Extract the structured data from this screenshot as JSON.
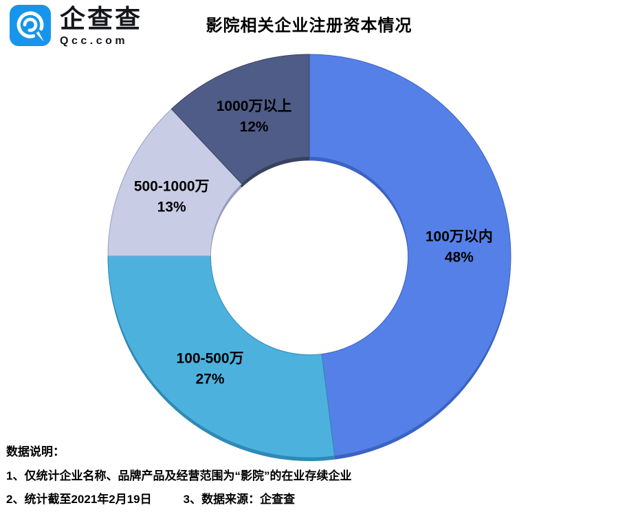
{
  "header": {
    "logo": {
      "brand_cn": "企查查",
      "brand_domain": "Qcc.com",
      "icon_color": "#1795EC",
      "icon_glyph_color": "#ffffff"
    },
    "title": "影院相关企业注册资本情况"
  },
  "chart_data": {
    "type": "pie",
    "subtype": "donut",
    "title": "影院相关企业注册资本情况",
    "unit": "%",
    "start_angle_deg": 0,
    "direction": "clockwise",
    "inner_radius_ratio": 0.49,
    "legend_position": "none",
    "labels_on_slices": true,
    "slices": [
      {
        "label": "100万以内",
        "value": 48,
        "color": "#5580E8",
        "edge_color": "#3C63C2"
      },
      {
        "label": "100-500万",
        "value": 27,
        "color": "#4DB1DE",
        "edge_color": "#2F89B5"
      },
      {
        "label": "500-1000万",
        "value": 13,
        "color": "#C9CCE5",
        "edge_color": "#989CC0"
      },
      {
        "label": "1000万以上",
        "value": 12,
        "color": "#4F5C87",
        "edge_color": "#38425F"
      }
    ]
  },
  "notes": {
    "heading": "数据说明：",
    "line1": "1、仅统计企业名称、品牌产品及经营范围为“影院”的在业存续企业",
    "line2_left": "2、统计截至2021年2月19日",
    "line2_right": "3、数据来源：企查查"
  }
}
